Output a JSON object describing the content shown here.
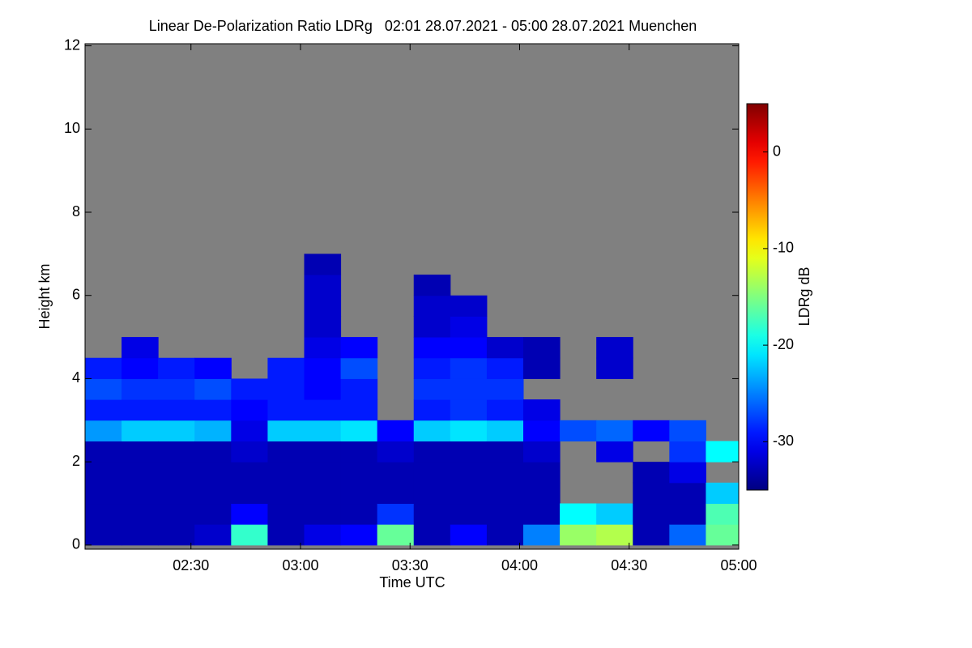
{
  "chart_data": {
    "type": "heatmap",
    "title": "Linear De-Polarization Ratio LDRg   02:01 28.07.2021 - 05:00 28.07.2021 Muenchen",
    "xlabel": "Time UTC",
    "ylabel": "Height km",
    "colorbar_label": "LDRg dB",
    "xlim": [
      121,
      300
    ],
    "xticks": [
      {
        "value": 150,
        "label": "02:30"
      },
      {
        "value": 180,
        "label": "03:00"
      },
      {
        "value": 210,
        "label": "03:30"
      },
      {
        "value": 240,
        "label": "04:00"
      },
      {
        "value": 270,
        "label": "04:30"
      },
      {
        "value": 300,
        "label": "05:00"
      }
    ],
    "ylim": [
      -0.1,
      12.05
    ],
    "yticks": [
      0,
      2,
      4,
      6,
      8,
      10,
      12
    ],
    "zlim": [
      -35,
      5
    ],
    "zticks": [
      0,
      -10,
      -20,
      -30
    ],
    "colormap": "jet",
    "background": "#808080",
    "xbins": [
      121,
      131,
      141,
      151,
      161,
      171,
      181,
      191,
      201,
      211,
      221,
      231,
      241,
      251,
      261,
      271,
      281,
      291,
      300
    ],
    "ybins": [
      0,
      0.5,
      1,
      1.5,
      2,
      2.5,
      3,
      3.5,
      4,
      4.5,
      5,
      5.5,
      6,
      6.5,
      7,
      7.5
    ],
    "values": [
      [
        -33,
        -33,
        -33,
        -33,
        -33,
        -24,
        -29,
        -27,
        -29,
        null,
        null,
        null,
        null,
        null,
        null
      ],
      [
        -33,
        -33,
        -33,
        -33,
        -33,
        -22,
        -29,
        -28,
        -30,
        -31,
        null,
        null,
        null,
        null,
        null
      ],
      [
        -33,
        -33,
        -33,
        -33,
        -33,
        -22,
        -29,
        -28,
        -29,
        null,
        null,
        null,
        null,
        null,
        null
      ],
      [
        -32,
        -33,
        -33,
        -33,
        -33,
        -23,
        -29,
        -27,
        -30,
        null,
        null,
        null,
        null,
        null,
        null
      ],
      [
        -18,
        -30,
        -33,
        -33,
        -32,
        -31,
        -30,
        -29,
        null,
        null,
        null,
        null,
        null,
        null,
        null
      ],
      [
        -33,
        -33,
        -33,
        -33,
        -33,
        -22,
        -29,
        -29,
        -29,
        null,
        null,
        null,
        null,
        null,
        null
      ],
      [
        -31,
        -33,
        -33,
        -33,
        -33,
        -22,
        -29,
        -30,
        -30,
        -31,
        -32,
        -32,
        -32,
        -33,
        null
      ],
      [
        -30,
        -33,
        -33,
        -33,
        -33,
        -21,
        -29,
        -29,
        -27,
        -30,
        null,
        null,
        null,
        null,
        null
      ],
      [
        -16,
        -28,
        -33,
        -33,
        -32,
        -30,
        null,
        null,
        null,
        null,
        null,
        null,
        null,
        null,
        null
      ],
      [
        -33,
        -33,
        -33,
        -33,
        -33,
        -22,
        -29,
        -28,
        -29,
        -30,
        -32,
        -32,
        -33,
        null,
        null
      ],
      [
        -30,
        -33,
        -33,
        -33,
        -33,
        -21,
        -28,
        -28,
        -28,
        -30,
        -31,
        -32,
        null,
        null,
        null
      ],
      [
        -33,
        -33,
        -33,
        -33,
        -33,
        -22,
        -29,
        -28,
        -29,
        -32,
        null,
        null,
        null,
        null,
        null
      ],
      [
        -25,
        -33,
        -33,
        -33,
        -32,
        -30,
        -31,
        null,
        -33,
        -33,
        null,
        null,
        null,
        null,
        null
      ],
      [
        -14,
        -20,
        null,
        null,
        null,
        -27,
        null,
        null,
        null,
        null,
        null,
        null,
        null,
        null,
        null
      ],
      [
        -13,
        -22,
        null,
        null,
        -31,
        -26,
        null,
        null,
        -32,
        -32,
        null,
        null,
        null,
        null,
        null
      ],
      [
        -33,
        -33,
        -33,
        -33,
        null,
        -30,
        null,
        null,
        null,
        null,
        null,
        null,
        null,
        null,
        null
      ],
      [
        -26,
        -33,
        -33,
        -31,
        -28,
        -27,
        null,
        null,
        null,
        null,
        null,
        null,
        null,
        null,
        null
      ],
      [
        -16,
        -17,
        -22,
        null,
        -20,
        null,
        null,
        null,
        null,
        null,
        null,
        null,
        null,
        null,
        null
      ]
    ]
  }
}
